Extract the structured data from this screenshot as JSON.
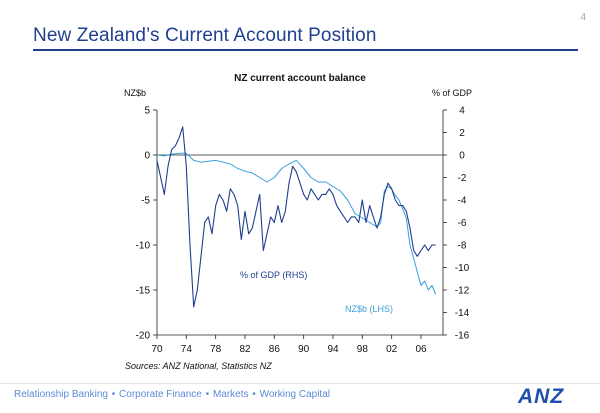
{
  "page_number": "4",
  "slide_title": "New Zealand’s Current Account Position",
  "footer": {
    "links": [
      "Relationship Banking",
      "Corporate Finance",
      "Markets",
      "Working Capital"
    ],
    "separator": "•",
    "logo_text": "ANZ",
    "logo_color": "#1f4fb0"
  },
  "chart_data": {
    "type": "line",
    "title": "NZ current account balance",
    "left_axis_unit": "NZ$b",
    "right_axis_unit": "% of GDP",
    "source": "Sources: ANZ National, Statistics NZ",
    "x_ticks": [
      "70",
      "74",
      "78",
      "82",
      "86",
      "90",
      "94",
      "98",
      "02",
      "06"
    ],
    "x_range": [
      1970,
      2009
    ],
    "y_left": {
      "range": [
        -20,
        5
      ],
      "ticks": [
        "5",
        "0",
        "-5",
        "-10",
        "-15",
        "-20"
      ]
    },
    "y_right": {
      "range": [
        -16,
        4
      ],
      "ticks": [
        "4",
        "2",
        "0",
        "-2",
        "-4",
        "-6",
        "-8",
        "-10",
        "-12",
        "-14",
        "-16"
      ]
    },
    "grid": false,
    "series": [
      {
        "name": "% of GDP (RHS)",
        "axis": "right",
        "color": "#1f3f8f",
        "label_text": "% of GDP (RHS)",
        "x": [
          1970.0,
          1970.5,
          1971.0,
          1971.5,
          1972.0,
          1972.5,
          1973.0,
          1973.5,
          1974.0,
          1974.5,
          1975.0,
          1975.5,
          1976.0,
          1976.5,
          1977.0,
          1977.5,
          1978.0,
          1978.5,
          1979.0,
          1979.5,
          1980.0,
          1980.5,
          1981.0,
          1981.5,
          1982.0,
          1982.5,
          1983.0,
          1983.5,
          1984.0,
          1984.5,
          1985.0,
          1985.5,
          1986.0,
          1986.5,
          1987.0,
          1987.5,
          1988.0,
          1988.5,
          1989.0,
          1989.5,
          1990.0,
          1990.5,
          1991.0,
          1991.5,
          1992.0,
          1992.5,
          1993.0,
          1993.5,
          1994.0,
          1994.5,
          1995.0,
          1995.5,
          1996.0,
          1996.5,
          1997.0,
          1997.5,
          1998.0,
          1998.5,
          1999.0,
          1999.5,
          2000.0,
          2000.5,
          2001.0,
          2001.5,
          2002.0,
          2002.5,
          2003.0,
          2003.5,
          2004.0,
          2004.5,
          2005.0,
          2005.5,
          2006.0,
          2006.5,
          2007.0,
          2007.5,
          2008.0
        ],
        "values": [
          -0.5,
          -2.0,
          -3.5,
          -1.0,
          0.5,
          0.8,
          1.5,
          2.5,
          -1.0,
          -8.0,
          -13.5,
          -12.0,
          -9.0,
          -6.0,
          -5.5,
          -7.0,
          -4.5,
          -3.5,
          -4.0,
          -5.0,
          -3.0,
          -3.5,
          -4.5,
          -7.5,
          -5.0,
          -7.0,
          -6.5,
          -5.0,
          -3.5,
          -8.5,
          -7.0,
          -5.5,
          -6.0,
          -4.5,
          -6.0,
          -5.0,
          -2.5,
          -1.0,
          -1.5,
          -2.5,
          -3.5,
          -4.0,
          -3.0,
          -3.5,
          -4.0,
          -3.5,
          -3.5,
          -3.0,
          -3.5,
          -4.5,
          -5.0,
          -5.5,
          -6.0,
          -5.5,
          -5.5,
          -6.0,
          -4.0,
          -6.0,
          -4.5,
          -5.5,
          -6.5,
          -5.5,
          -3.5,
          -2.5,
          -3.0,
          -4.0,
          -4.5,
          -4.5,
          -5.0,
          -6.5,
          -8.5,
          -9.0,
          -8.5,
          -8.0,
          -8.5,
          -8.0,
          -8.0
        ]
      },
      {
        "name": "NZ$b (LHS)",
        "axis": "left",
        "color": "#3aa0dc",
        "label_text": "NZ$b (LHS)",
        "x": [
          1970.0,
          1971.0,
          1972.0,
          1973.0,
          1974.0,
          1975.0,
          1976.0,
          1977.0,
          1978.0,
          1979.0,
          1980.0,
          1981.0,
          1982.0,
          1983.0,
          1984.0,
          1985.0,
          1986.0,
          1987.0,
          1988.0,
          1989.0,
          1990.0,
          1991.0,
          1992.0,
          1993.0,
          1994.0,
          1995.0,
          1996.0,
          1997.0,
          1998.0,
          1999.0,
          2000.0,
          2000.5,
          2001.0,
          2001.5,
          2002.0,
          2002.5,
          2003.0,
          2003.5,
          2004.0,
          2004.5,
          2005.0,
          2005.5,
          2006.0,
          2006.5,
          2007.0,
          2007.5,
          2008.0
        ],
        "values": [
          0.0,
          -0.1,
          0.1,
          0.2,
          0.2,
          -0.6,
          -0.8,
          -0.7,
          -0.6,
          -0.8,
          -1.0,
          -1.5,
          -1.8,
          -2.0,
          -2.5,
          -3.0,
          -2.5,
          -1.5,
          -1.0,
          -0.6,
          -1.5,
          -2.5,
          -3.0,
          -3.0,
          -3.5,
          -4.0,
          -5.0,
          -6.5,
          -7.0,
          -7.5,
          -8.0,
          -7.5,
          -4.0,
          -3.5,
          -3.8,
          -4.5,
          -5.0,
          -6.0,
          -7.0,
          -10.0,
          -11.5,
          -13.0,
          -14.5,
          -14.0,
          -15.0,
          -14.5,
          -15.5
        ]
      }
    ]
  }
}
